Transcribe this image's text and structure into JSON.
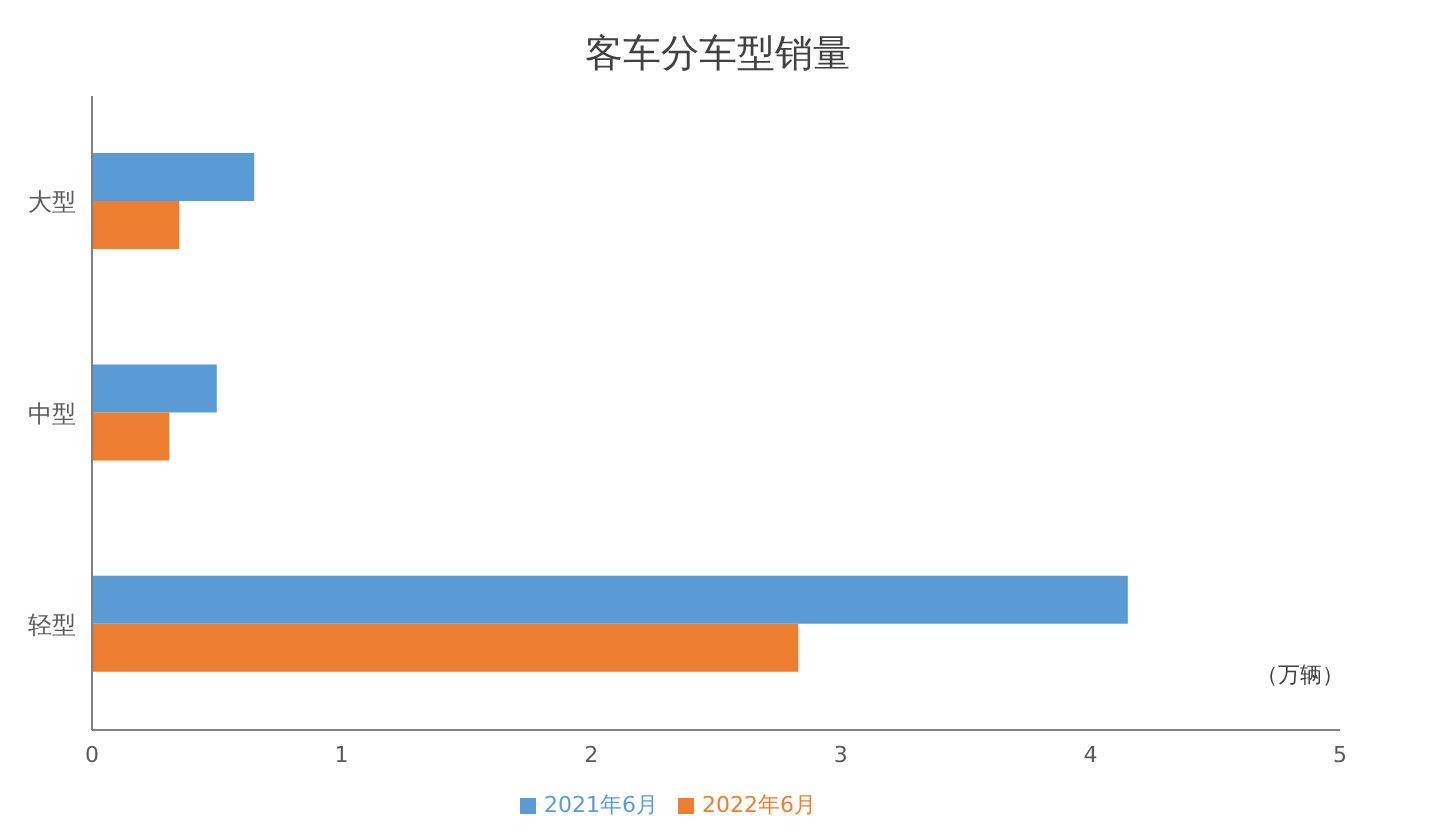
{
  "chart_data": {
    "type": "bar",
    "orientation": "horizontal",
    "title": "客车分车型销量",
    "xlabel": "（万辆）",
    "categories": [
      "大型",
      "中型",
      "轻型"
    ],
    "series": [
      {
        "name": "2021年6月",
        "color": "#5b9bd5",
        "values": [
          0.65,
          0.5,
          4.15
        ]
      },
      {
        "name": "2022年6月",
        "color": "#ed7d31",
        "values": [
          0.35,
          0.31,
          2.83
        ]
      }
    ],
    "xlim": [
      0,
      5
    ],
    "xticks": [
      0,
      1,
      2,
      3,
      4,
      5
    ],
    "grid": false,
    "legend": "bottom"
  }
}
